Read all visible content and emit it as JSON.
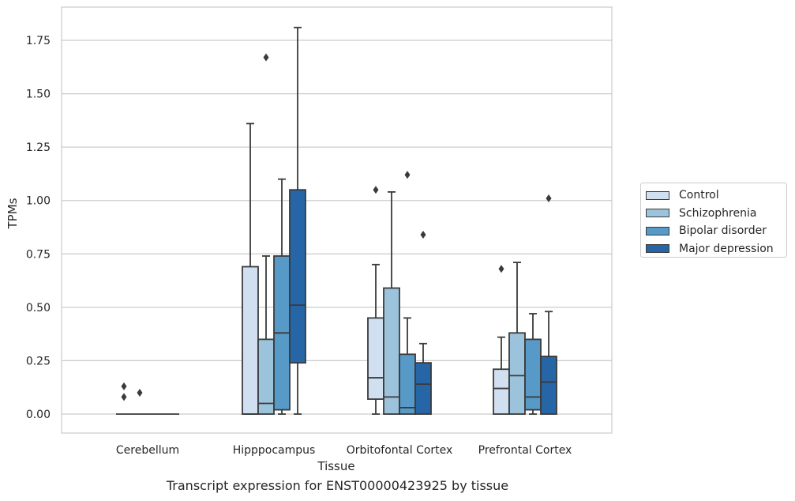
{
  "caption": "Transcript expression for ENST00000423925 by tissue",
  "chart_data": {
    "type": "box",
    "xlabel": "Tissue",
    "ylabel": "TPMs",
    "ylim": [
      -0.09,
      1.9
    ],
    "yticks": [
      "0.00",
      "0.25",
      "0.50",
      "0.75",
      "1.00",
      "1.25",
      "1.50",
      "1.75"
    ],
    "ytick_values": [
      0,
      0.25,
      0.5,
      0.75,
      1.0,
      1.25,
      1.5,
      1.75
    ],
    "grid": "horizontal",
    "legend_position": "right",
    "categories": [
      "Cerebellum",
      "Hipppocampus",
      "Orbitofontal Cortex",
      "Prefrontal Cortex"
    ],
    "series": [
      {
        "name": "Control",
        "color": "#d0e0f0",
        "boxes": [
          {
            "whislo": 0,
            "q1": 0,
            "med": 0,
            "q3": 0,
            "whishi": 0,
            "fliers": [
              0.13,
              0.08
            ]
          },
          {
            "whislo": 0,
            "q1": 0,
            "med": 0,
            "q3": 0.69,
            "whishi": 1.36,
            "fliers": []
          },
          {
            "whislo": 0,
            "q1": 0.07,
            "med": 0.17,
            "q3": 0.45,
            "whishi": 0.7,
            "fliers": [
              1.05
            ]
          },
          {
            "whislo": 0,
            "q1": 0,
            "med": 0.12,
            "q3": 0.21,
            "whishi": 0.36,
            "fliers": [
              0.68
            ]
          }
        ]
      },
      {
        "name": "Schizophrenia",
        "color": "#9cc3dc",
        "boxes": [
          {
            "whislo": 0,
            "q1": 0,
            "med": 0,
            "q3": 0,
            "whishi": 0,
            "fliers": [
              0.1
            ]
          },
          {
            "whislo": 0,
            "q1": 0,
            "med": 0.05,
            "q3": 0.35,
            "whishi": 0.74,
            "fliers": [
              1.67
            ]
          },
          {
            "whislo": 0,
            "q1": 0,
            "med": 0.08,
            "q3": 0.59,
            "whishi": 1.04,
            "fliers": []
          },
          {
            "whislo": 0,
            "q1": 0,
            "med": 0.18,
            "q3": 0.38,
            "whishi": 0.71,
            "fliers": []
          }
        ]
      },
      {
        "name": "Bipolar disorder",
        "color": "#5799c7",
        "boxes": [
          {
            "whislo": 0,
            "q1": 0,
            "med": 0,
            "q3": 0,
            "whishi": 0,
            "fliers": []
          },
          {
            "whislo": 0,
            "q1": 0.02,
            "med": 0.38,
            "q3": 0.74,
            "whishi": 1.1,
            "fliers": []
          },
          {
            "whislo": 0,
            "q1": 0,
            "med": 0.03,
            "q3": 0.28,
            "whishi": 0.45,
            "fliers": [
              1.12
            ]
          },
          {
            "whislo": 0,
            "q1": 0.02,
            "med": 0.08,
            "q3": 0.35,
            "whishi": 0.47,
            "fliers": []
          }
        ]
      },
      {
        "name": "Major depression",
        "color": "#2666a6",
        "boxes": [
          {
            "whislo": 0,
            "q1": 0,
            "med": 0,
            "q3": 0,
            "whishi": 0,
            "fliers": []
          },
          {
            "whislo": 0,
            "q1": 0.24,
            "med": 0.51,
            "q3": 1.05,
            "whishi": 1.81,
            "fliers": []
          },
          {
            "whislo": 0,
            "q1": 0,
            "med": 0.14,
            "q3": 0.24,
            "whishi": 0.33,
            "fliers": [
              0.84
            ]
          },
          {
            "whislo": 0,
            "q1": 0,
            "med": 0.15,
            "q3": 0.27,
            "whishi": 0.48,
            "fliers": [
              1.01
            ]
          }
        ]
      }
    ]
  }
}
